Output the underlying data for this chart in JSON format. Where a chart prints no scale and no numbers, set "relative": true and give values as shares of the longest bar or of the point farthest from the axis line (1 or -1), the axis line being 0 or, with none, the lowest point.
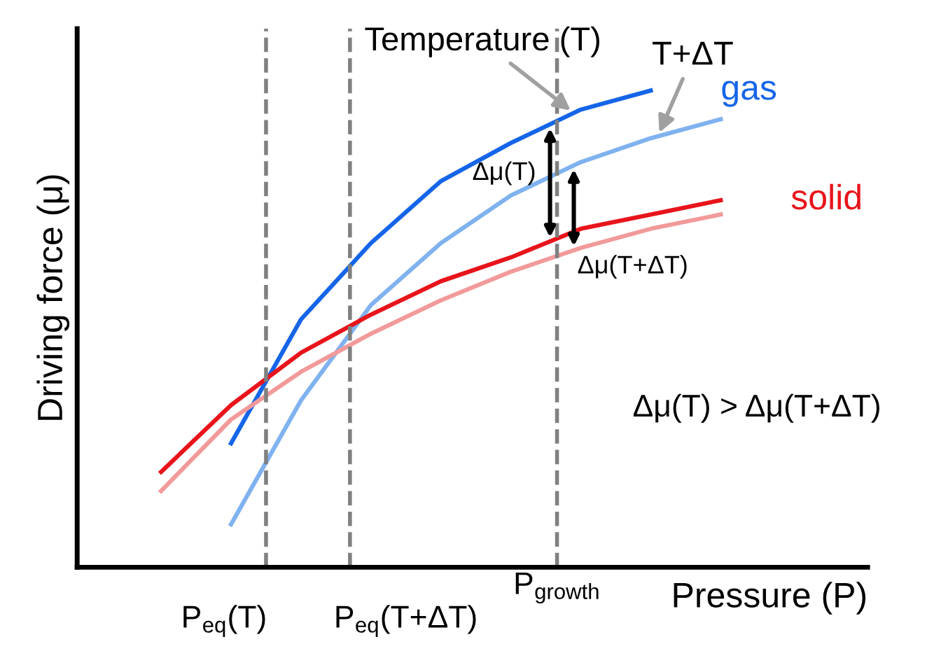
{
  "chart_data": {
    "type": "line",
    "relative": true,
    "xlabel": "Pressure (P)",
    "ylabel": "Driving force (μ)",
    "categories": [
      null,
      null,
      null,
      null,
      null,
      null,
      null,
      null,
      null
    ],
    "series": [
      {
        "name": "gas",
        "color": "#1565e8",
        "values": [
          null,
          0.26,
          0.52,
          0.68,
          0.81,
          0.89,
          0.96,
          1.0,
          null
        ]
      },
      {
        "color": "#7fb2ef",
        "values": [
          null,
          0.09,
          0.35,
          0.55,
          0.68,
          0.78,
          0.85,
          0.9,
          0.94
        ]
      },
      {
        "name": "solid",
        "color": "#e8141b",
        "values": [
          0.2,
          0.34,
          0.45,
          0.53,
          0.6,
          0.65,
          0.71,
          0.74,
          0.77
        ]
      },
      {
        "color": "#f29a9a",
        "values": [
          0.16,
          0.31,
          0.41,
          0.49,
          0.56,
          0.62,
          0.67,
          0.71,
          0.74
        ]
      }
    ],
    "annotations": [
      "Temperature (T)",
      "T+ΔT",
      "Δμ(T)",
      "Δμ(T+ΔT)",
      "Δμ(T) > Δμ(T+ΔT)",
      "P$_{eq}$(T)",
      "P$_{eq}$(T+ΔT)",
      "P$_{growth}$"
    ],
    "line_style": "solid",
    "marker": "none"
  }
}
